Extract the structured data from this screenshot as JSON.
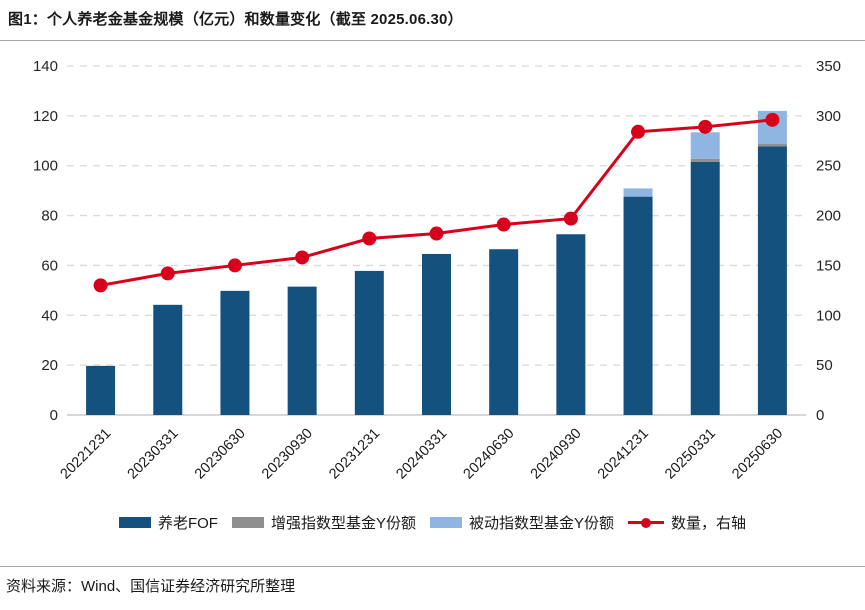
{
  "figure": {
    "title": "图1：个人养老金基金规模（亿元）和数量变化（截至 2025.06.30）",
    "source": "资料来源：Wind、国信证券经济研究所整理"
  },
  "chart_data": {
    "type": "bar",
    "subtype": "stacked-bar-with-line-combo",
    "title": "个人养老金基金规模（亿元）和数量变化（截至 2025.06.30）",
    "categories": [
      "20221231",
      "20230331",
      "20230630",
      "20230930",
      "20231231",
      "20240331",
      "20240630",
      "20240930",
      "20241231",
      "20250331",
      "20250630"
    ],
    "series": [
      {
        "name": "养老FOF",
        "type": "bar",
        "stack": "scale",
        "color": "#14517F",
        "values": [
          19.7,
          44.2,
          49.8,
          51.5,
          57.8,
          64.6,
          66.5,
          72.5,
          87.6,
          101.5,
          107.8
        ]
      },
      {
        "name": "增强指数型基金Y份额",
        "type": "bar",
        "stack": "scale",
        "color": "#8F8F8F",
        "values": [
          0,
          0,
          0,
          0,
          0,
          0,
          0,
          0,
          0,
          1.3,
          0.9
        ]
      },
      {
        "name": "被动指数型基金Y份额",
        "type": "bar",
        "stack": "scale",
        "color": "#8FB5E1",
        "values": [
          0,
          0,
          0,
          0,
          0,
          0,
          0,
          0,
          3.3,
          10.6,
          13.3
        ]
      },
      {
        "name": "数量，右轴",
        "type": "line",
        "axis": "right",
        "color": "#D9001B",
        "values": [
          130,
          142,
          150,
          158,
          177,
          182,
          191,
          197,
          284,
          289,
          296
        ]
      }
    ],
    "left_axis": {
      "min": 0,
      "max": 140,
      "step": 20,
      "ticks": [
        0,
        20,
        40,
        60,
        80,
        100,
        120,
        140
      ]
    },
    "right_axis": {
      "min": 0,
      "max": 350,
      "step": 50,
      "ticks": [
        0,
        50,
        100,
        150,
        200,
        250,
        300,
        350
      ]
    },
    "grid": "horizontal-dashed",
    "legend_position": "bottom",
    "colors": {
      "grid": "#D9D9D9",
      "axis_line": "#BFBFBF",
      "tick_label": "#262626"
    }
  }
}
